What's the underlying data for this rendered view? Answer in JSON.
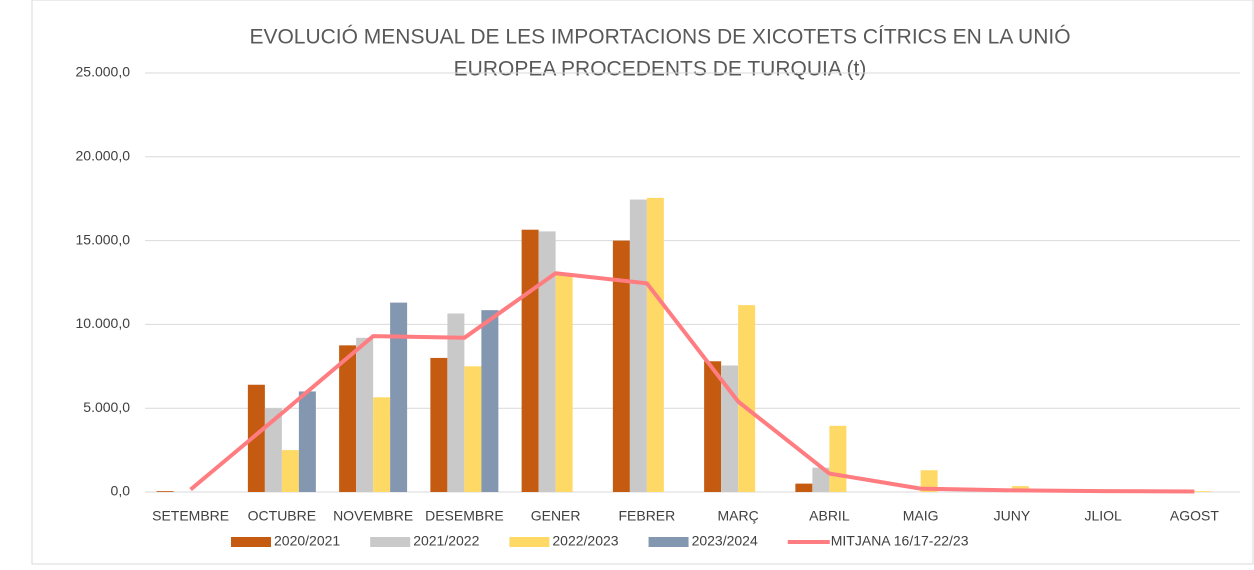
{
  "chart_data": {
    "type": "bar",
    "title": [
      "EVOLUCIÓ MENSUAL DE LES IMPORTACIONS DE XICOTETS CÍTRICS EN LA UNIÓ",
      "EUROPEA PROCEDENTS DE TURQUIA (t)"
    ],
    "categories": [
      "SETEMBRE",
      "OCTUBRE",
      "NOVEMBRE",
      "DESEMBRE",
      "GENER",
      "FEBRER",
      "MARÇ",
      "ABRIL",
      "MAIG",
      "JUNY",
      "JLIOL",
      "AGOST"
    ],
    "series": [
      {
        "name": "2020/2021",
        "color": "#c55a11",
        "values": [
          50,
          6400,
          8750,
          8000,
          15650,
          15000,
          7800,
          500,
          0,
          0,
          0,
          0
        ]
      },
      {
        "name": "2021/2022",
        "color": "#c9c9c9",
        "values": [
          0,
          5000,
          9200,
          10650,
          15550,
          17450,
          7550,
          1450,
          0,
          0,
          0,
          0
        ]
      },
      {
        "name": "2022/2023",
        "color": "#ffd966",
        "values": [
          0,
          2500,
          5650,
          7500,
          13000,
          17550,
          11150,
          3950,
          1300,
          350,
          0,
          50
        ]
      },
      {
        "name": "2023/2024",
        "color": "#8497b0",
        "values": [
          null,
          6000,
          11300,
          10850,
          null,
          null,
          null,
          null,
          null,
          null,
          null,
          null
        ]
      },
      {
        "name": "MITJANA 16/17-22/23",
        "color": "#ff7c80",
        "type": "line",
        "values": [
          150,
          4700,
          9300,
          9200,
          13050,
          12450,
          5400,
          1100,
          200,
          100,
          50,
          30
        ]
      }
    ],
    "ylim": [
      0,
      25000
    ],
    "yticks": [
      {
        "value": 0,
        "label": "0,0"
      },
      {
        "value": 5000,
        "label": "5.000,0"
      },
      {
        "value": 10000,
        "label": "10.000,0"
      },
      {
        "value": 15000,
        "label": "15.000,0"
      },
      {
        "value": 20000,
        "label": "20.000,0"
      },
      {
        "value": 25000,
        "label": "25.000,0"
      }
    ],
    "grid": true,
    "legend": "bottom"
  }
}
